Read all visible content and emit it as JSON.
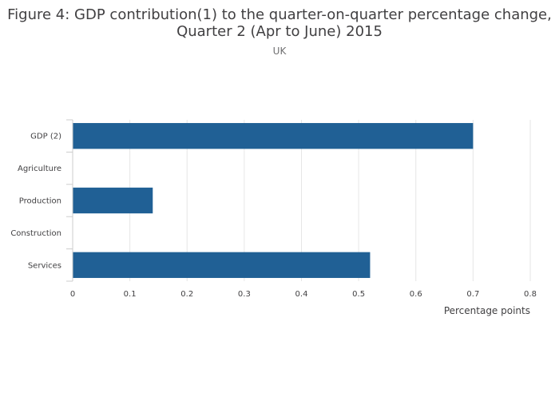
{
  "chart_data": {
    "type": "bar",
    "orientation": "horizontal",
    "title_lines": [
      "Figure 4: GDP contribution(1) to the quarter-on-quarter percentage change,",
      "Quarter 2 (Apr to June) 2015"
    ],
    "subtitle": "UK",
    "categories": [
      "GDP (2)",
      "Agriculture",
      "Production",
      "Construction",
      "Services"
    ],
    "values": [
      0.7,
      0.0,
      0.14,
      0.0,
      0.52
    ],
    "xlabel": "Percentage points",
    "xlim": [
      0,
      0.8
    ],
    "xticks": [
      0,
      0.1,
      0.2,
      0.3,
      0.4,
      0.5,
      0.6,
      0.7,
      0.8
    ],
    "xtick_labels": [
      "0",
      "0.1",
      "0.2",
      "0.3",
      "0.4",
      "0.5",
      "0.6",
      "0.7",
      "0.8"
    ],
    "grid": true,
    "bar_color": "#206095"
  }
}
